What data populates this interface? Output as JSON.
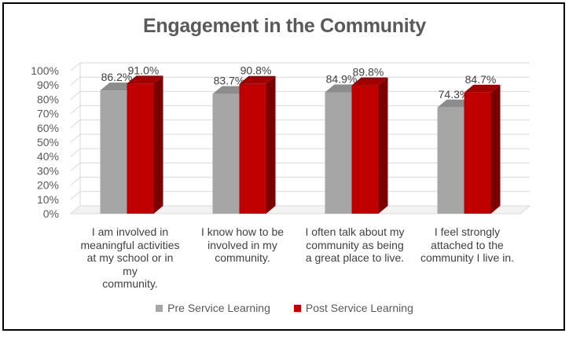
{
  "chart_data": {
    "type": "bar",
    "title": "Engagement in the Community",
    "categories": [
      [
        "I am involved in",
        "meaningful activities",
        "at my school or in my",
        "community."
      ],
      [
        "I know how to be",
        "involved in my",
        "community."
      ],
      [
        "I often talk about my",
        "community as being",
        "a great place to live."
      ],
      [
        "I feel strongly",
        "attached to the",
        "community I live in."
      ]
    ],
    "series": [
      {
        "name": "Pre Service Learning",
        "values": [
          86.2,
          83.7,
          84.9,
          74.3
        ],
        "labels": [
          "86.2%",
          "83.7%",
          "84.9%",
          "74.3%"
        ],
        "color": "#a6a6a6",
        "side": "#808080",
        "top": "#8c8c8c"
      },
      {
        "name": "Post Service Learning",
        "values": [
          91.0,
          90.8,
          89.8,
          84.7
        ],
        "labels": [
          "91.0%",
          "90.8%",
          "89.8%",
          "84.7%"
        ],
        "color": "#c00000",
        "side": "#7a0000",
        "top": "#a00000"
      }
    ],
    "yticks": [
      "0%",
      "10%",
      "20%",
      "30%",
      "40%",
      "50%",
      "60%",
      "70%",
      "80%",
      "90%",
      "100%"
    ],
    "ylim": [
      0,
      100
    ],
    "grid": true,
    "legend": "bottom"
  }
}
